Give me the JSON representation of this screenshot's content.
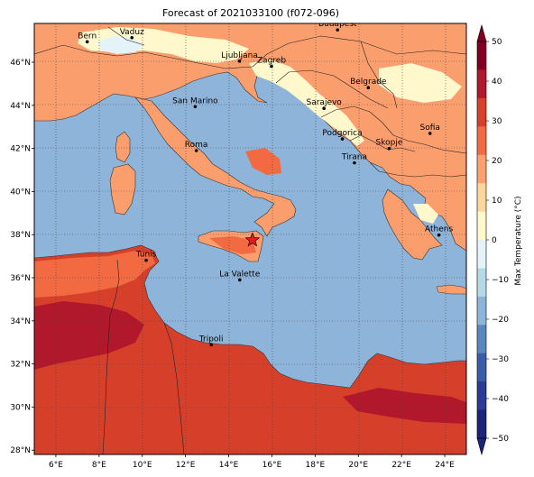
{
  "title": "Forecast of 2021033100 (f072-096)",
  "map": {
    "lon_range": [
      5,
      25
    ],
    "lat_range": [
      27.8,
      48
    ],
    "sea_color": "#8fb4d9",
    "lat_ticks": [
      "46°N",
      "44°N",
      "42°N",
      "40°N",
      "38°N",
      "36°N",
      "34°N",
      "32°N",
      "30°N",
      "28°N"
    ],
    "lon_ticks": [
      "6°E",
      "8°E",
      "10°E",
      "12°E",
      "14°E",
      "16°E",
      "18°E",
      "20°E",
      "22°E",
      "24°E"
    ],
    "cities": [
      {
        "name": "Bern",
        "lon": 7.45,
        "lat": 46.95
      },
      {
        "name": "Vaduz",
        "lon": 9.52,
        "lat": 47.14
      },
      {
        "name": "Budapest",
        "lon": 19.04,
        "lat": 47.5
      },
      {
        "name": "Ljubljana",
        "lon": 14.5,
        "lat": 46.05
      },
      {
        "name": "Zagreb",
        "lon": 15.98,
        "lat": 45.81
      },
      {
        "name": "Belgrade",
        "lon": 20.46,
        "lat": 44.82
      },
      {
        "name": "San Marino",
        "lon": 12.45,
        "lat": 43.94
      },
      {
        "name": "Sarajevo",
        "lon": 18.41,
        "lat": 43.86
      },
      {
        "name": "Sofia",
        "lon": 23.32,
        "lat": 42.7
      },
      {
        "name": "Podgorica",
        "lon": 19.26,
        "lat": 42.44
      },
      {
        "name": "Skopje",
        "lon": 21.43,
        "lat": 42.0
      },
      {
        "name": "Roma",
        "lon": 12.5,
        "lat": 41.9
      },
      {
        "name": "Tirana",
        "lon": 19.82,
        "lat": 41.33
      },
      {
        "name": "Athens",
        "lon": 23.73,
        "lat": 37.98
      },
      {
        "name": "Tunis",
        "lon": 10.18,
        "lat": 36.81
      },
      {
        "name": "La Valette",
        "lon": 14.51,
        "lat": 35.9
      },
      {
        "name": "Tripoli",
        "lon": 13.19,
        "lat": 32.89
      }
    ],
    "marker": {
      "name": "star",
      "lon": 15.1,
      "lat": 37.75,
      "color": "#e41a1c"
    }
  },
  "colorbar": {
    "label": "Max Temperature (°C)",
    "ticks": [
      "50",
      "40",
      "30",
      "20",
      "10",
      "0",
      "−10",
      "−20",
      "−30",
      "−40",
      "−50"
    ],
    "colors": [
      "#7f0020",
      "#b2182b",
      "#d6402b",
      "#f16a42",
      "#fda071",
      "#fed59a",
      "#fff8cc",
      "#e4f3f7",
      "#b6d9ea",
      "#8fb4d9",
      "#5a87c0",
      "#3b5ca8",
      "#2a3a96",
      "#1a2479"
    ]
  }
}
